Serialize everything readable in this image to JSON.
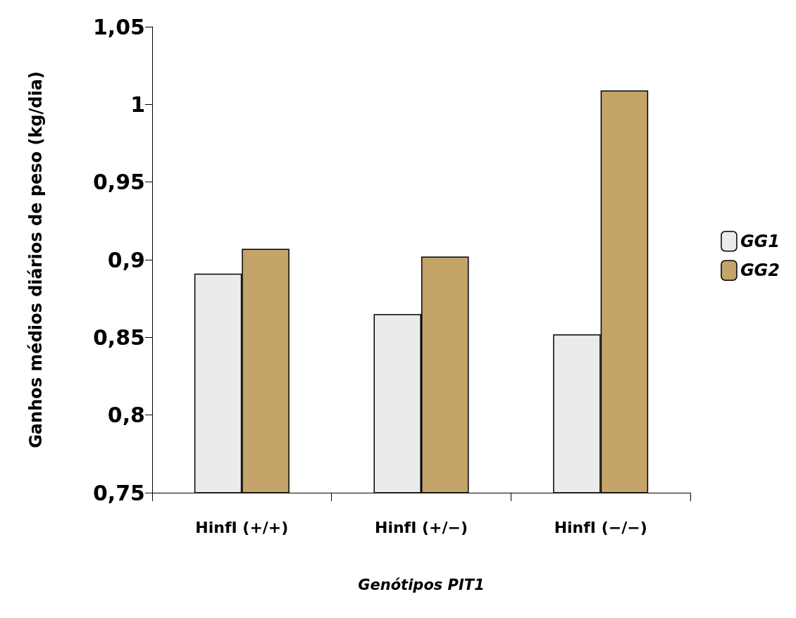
{
  "chart_data": {
    "type": "bar",
    "categories": [
      "HinfI (+/+)",
      "HinfI (+/−)",
      "HinfI (−/−)"
    ],
    "series": [
      {
        "name": "GG1",
        "color": "#ebebeb",
        "values": [
          0.891,
          0.865,
          0.852
        ]
      },
      {
        "name": "GG2",
        "color": "#c4a468",
        "values": [
          0.907,
          0.902,
          1.009
        ]
      }
    ],
    "xlabel": "Genótipos PIT1",
    "ylabel": "Ganhos médios diários de peso (kg/dia)",
    "ylim": [
      0.75,
      1.05
    ],
    "yticks": [
      {
        "value": 0.75,
        "label": "0,75"
      },
      {
        "value": 0.8,
        "label": "0,8"
      },
      {
        "value": 0.85,
        "label": "0,85"
      },
      {
        "value": 0.9,
        "label": "0,9"
      },
      {
        "value": 0.95,
        "label": "0,95"
      },
      {
        "value": 1,
        "label": "1"
      },
      {
        "value": 1.05,
        "label": "1,05"
      }
    ],
    "grid": false,
    "legend": "right"
  }
}
